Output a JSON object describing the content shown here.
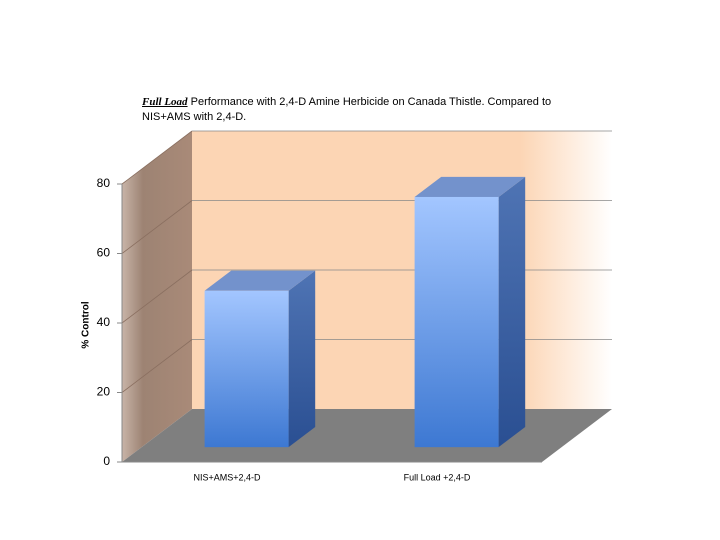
{
  "chart_data": {
    "type": "bar3d",
    "title_brand": "Full Load",
    "title": "Performance with 2,4-D Amine Herbicide on Canada Thistle. Compared to NIS+AMS with 2,4-D.",
    "y_label": "% Control",
    "categories": [
      "NIS+AMS+2,4-D",
      "Full Load +2,4-D"
    ],
    "values": [
      45,
      72
    ],
    "color": "#4a7fd6",
    "ylim": [
      0,
      80
    ],
    "yticks": [
      0,
      20,
      40,
      60,
      80
    ],
    "grid": true
  }
}
